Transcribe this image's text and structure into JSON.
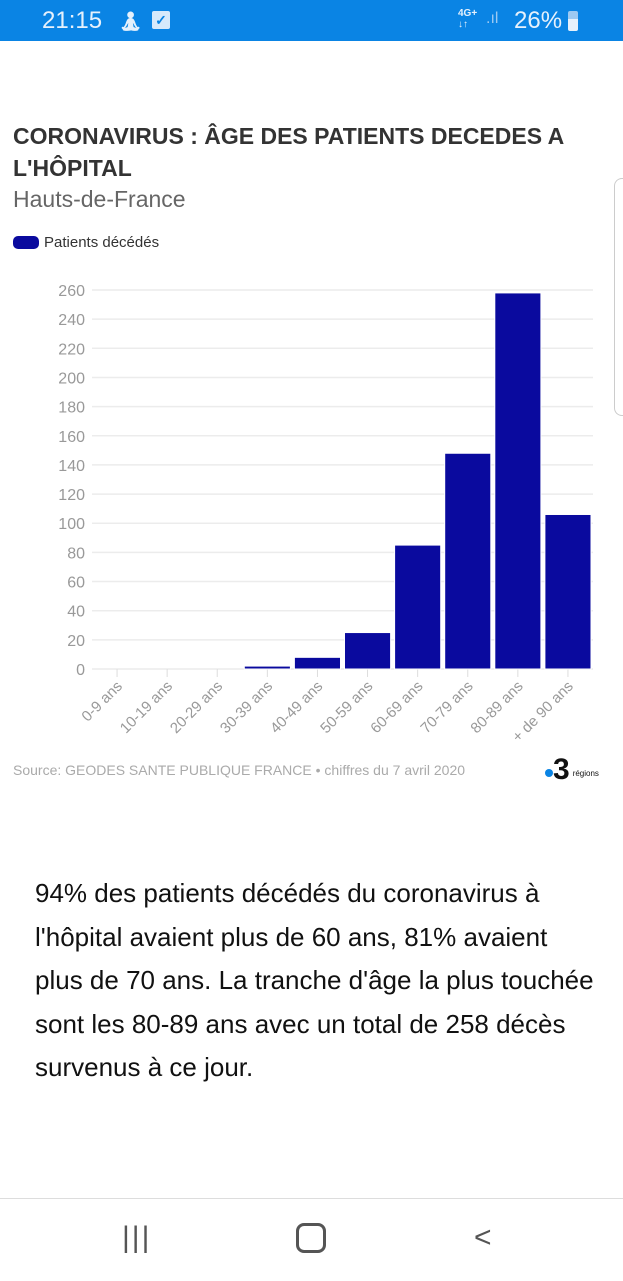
{
  "status_bar": {
    "time": "21:15",
    "network": "4G+",
    "battery": "26%"
  },
  "title": "CORONAVIRUS : ÂGE DES PATIENTS DECEDES A L'HÔPITAL",
  "subtitle": "Hauts-de-France",
  "source": "Source: GEODES SANTE PUBLIQUE FRANCE • chiffres du 7 avril 2020",
  "logo": {
    "number": "3",
    "text": "régions"
  },
  "body_text": "94% des patients décédés du coronavirus à l'hôpital avaient plus de 60 ans, 81% avaient plus de 70 ans. La tranche d'âge la plus touchée sont les 80-89 ans avec un total de 258 décès survenus à ce jour.",
  "chart_data": {
    "type": "bar",
    "title": "CORONAVIRUS : ÂGE DES PATIENTS DECEDES A L'HÔPITAL",
    "subtitle": "Hauts-de-France",
    "categories": [
      "0-9 ans",
      "10-19 ans",
      "20-29 ans",
      "30-39 ans",
      "40-49 ans",
      "50-59 ans",
      "60-69 ans",
      "70-79 ans",
      "80-89 ans",
      "+ de 90 ans"
    ],
    "series": [
      {
        "name": "Patients décédés",
        "values": [
          0,
          0,
          0,
          2,
          8,
          25,
          85,
          148,
          258,
          106
        ],
        "color": "#0a0a9e"
      }
    ],
    "yticks": [
      0,
      20,
      40,
      60,
      80,
      100,
      120,
      140,
      160,
      180,
      200,
      220,
      240,
      260
    ],
    "ylim": [
      0,
      260
    ],
    "grid": true,
    "legend": "top-left",
    "xlabel": "",
    "ylabel": ""
  }
}
